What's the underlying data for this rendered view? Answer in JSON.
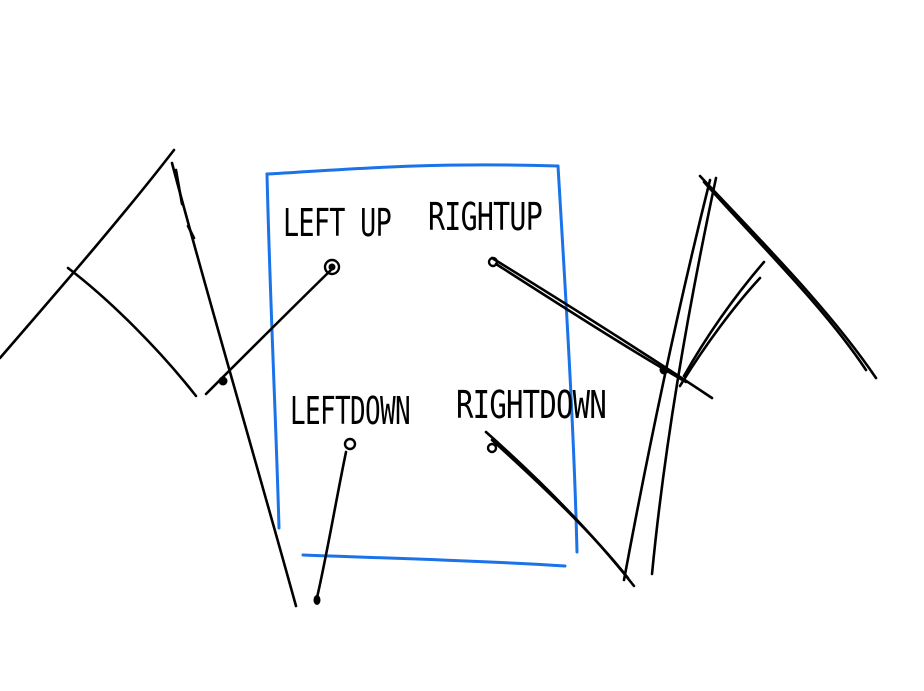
{
  "colors": {
    "ink": "#000000",
    "box": "#1a73e8",
    "background": "#ffffff"
  },
  "labels": {
    "left_up": "LEFT UP",
    "right_up": "RIGHTUP",
    "left_down": "LEFTDOWN",
    "right_down": "RIGHTDOWN"
  }
}
